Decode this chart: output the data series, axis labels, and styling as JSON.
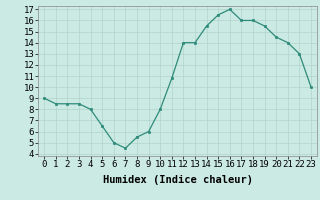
{
  "x": [
    0,
    1,
    2,
    3,
    4,
    5,
    6,
    7,
    8,
    9,
    10,
    11,
    12,
    13,
    14,
    15,
    16,
    17,
    18,
    19,
    20,
    21,
    22,
    23
  ],
  "y": [
    9.0,
    8.5,
    8.5,
    8.5,
    8.0,
    6.5,
    5.0,
    4.5,
    5.5,
    6.0,
    8.0,
    10.8,
    14.0,
    14.0,
    15.5,
    16.5,
    17.0,
    16.0,
    16.0,
    15.5,
    14.5,
    14.0,
    13.0,
    10.0
  ],
  "xlabel": "Humidex (Indice chaleur)",
  "ylim_min": 4,
  "ylim_max": 17,
  "xlim_min": 0,
  "xlim_max": 23,
  "yticks": [
    4,
    5,
    6,
    7,
    8,
    9,
    10,
    11,
    12,
    13,
    14,
    15,
    16,
    17
  ],
  "xticks": [
    0,
    1,
    2,
    3,
    4,
    5,
    6,
    7,
    8,
    9,
    10,
    11,
    12,
    13,
    14,
    15,
    16,
    17,
    18,
    19,
    20,
    21,
    22,
    23
  ],
  "line_color": "#2e8b7a",
  "marker_color": "#2e8b7a",
  "bg_color": "#cceae4",
  "grid_color": "#b0d4cc",
  "xlabel_fontsize": 7.5,
  "tick_fontsize": 6.5
}
